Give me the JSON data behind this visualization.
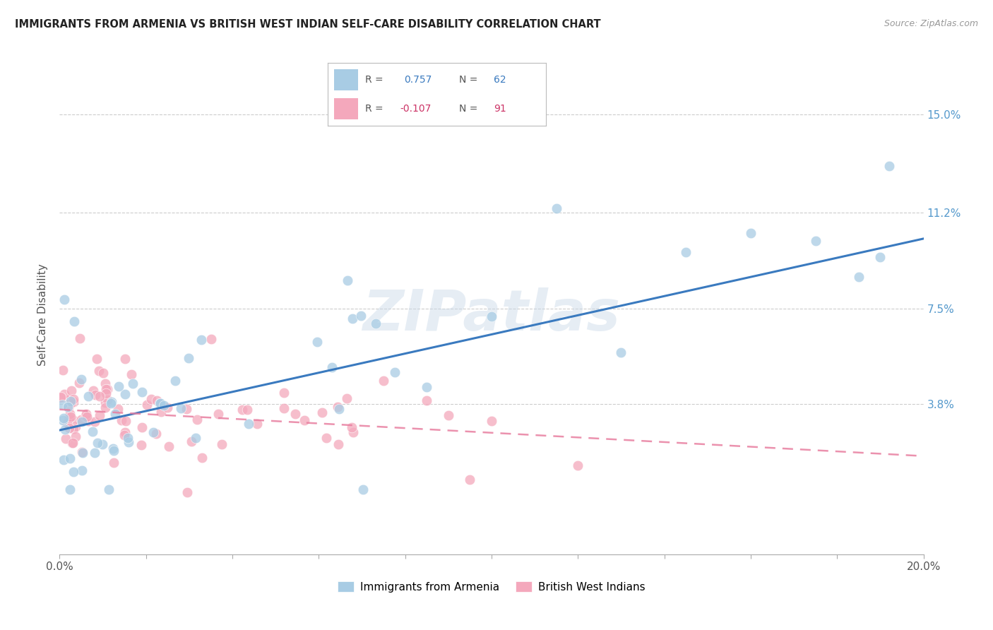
{
  "title": "IMMIGRANTS FROM ARMENIA VS BRITISH WEST INDIAN SELF-CARE DISABILITY CORRELATION CHART",
  "source": "Source: ZipAtlas.com",
  "ylabel": "Self-Care Disability",
  "xlim": [
    0.0,
    20.0
  ],
  "ylim": [
    -2.0,
    16.5
  ],
  "ytick_values": [
    3.8,
    7.5,
    11.2,
    15.0
  ],
  "ytick_labels": [
    "3.8%",
    "7.5%",
    "11.2%",
    "15.0%"
  ],
  "watermark": "ZIPatlas",
  "legend_blue_r": "0.757",
  "legend_blue_n": "62",
  "legend_pink_r": "-0.107",
  "legend_pink_n": "91",
  "blue_color": "#a8cce4",
  "pink_color": "#f4a8bc",
  "blue_line_color": "#3a7abf",
  "pink_line_color": "#e87fa0",
  "background_color": "#ffffff",
  "grid_color": "#cccccc",
  "title_color": "#222222",
  "right_ytick_color": "#5599cc",
  "arm_line_x0": 0.0,
  "arm_line_y0": 2.8,
  "arm_line_x1": 20.0,
  "arm_line_y1": 10.2,
  "bwi_line_x0": 0.0,
  "bwi_line_y0": 3.6,
  "bwi_line_x1": 20.0,
  "bwi_line_y1": 1.8
}
